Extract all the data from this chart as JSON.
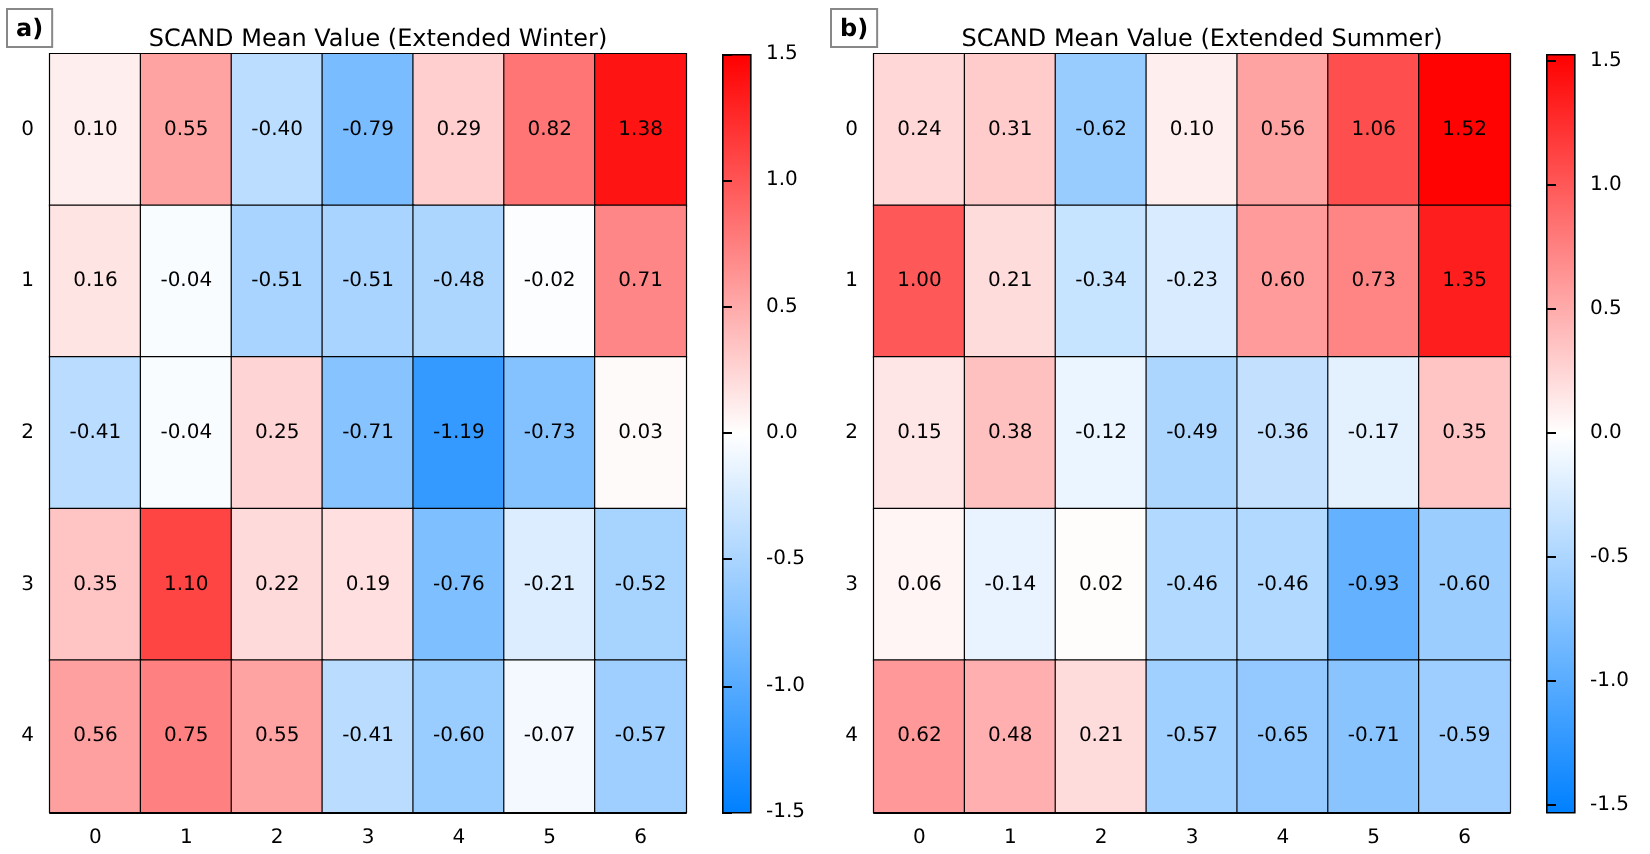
{
  "chart_data": [
    {
      "type": "heatmap",
      "title": "SCAND Mean Value (Extended Winter)",
      "annotations": [
        "a)"
      ],
      "categories": [
        "0",
        "1",
        "2",
        "3",
        "4",
        "5",
        "6"
      ],
      "y_categories": [
        "0",
        "1",
        "2",
        "3",
        "4"
      ],
      "cells": [
        [
          0.1,
          0.55,
          -0.4,
          -0.79,
          0.29,
          0.82,
          1.38
        ],
        [
          0.16,
          -0.04,
          -0.51,
          -0.51,
          -0.48,
          -0.02,
          0.71
        ],
        [
          -0.41,
          -0.04,
          0.25,
          -0.71,
          -1.19,
          -0.73,
          0.03
        ],
        [
          0.35,
          1.1,
          0.22,
          0.19,
          -0.76,
          -0.21,
          -0.52
        ],
        [
          0.56,
          0.75,
          0.55,
          -0.41,
          -0.6,
          -0.07,
          -0.57
        ]
      ],
      "cell_labels": [
        [
          "0.10",
          "0.55",
          "-0.40",
          "-0.79",
          "0.29",
          "0.82",
          "1.38"
        ],
        [
          "0.16",
          "-0.04",
          "-0.51",
          "-0.51",
          "-0.48",
          "-0.02",
          "0.71"
        ],
        [
          "-0.41",
          "-0.04",
          "0.25",
          "-0.71",
          "-1.19",
          "-0.73",
          "0.03"
        ],
        [
          "0.35",
          "1.10",
          "0.22",
          "0.19",
          "-0.76",
          "-0.21",
          "-0.52"
        ],
        [
          "0.56",
          "0.75",
          "0.55",
          "-0.41",
          "-0.60",
          "-0.07",
          "-0.57"
        ]
      ],
      "data_labels": true,
      "colors": [
        "#0080ff",
        "#ffffff",
        "#ff0000"
      ],
      "clim": [
        -1.5,
        1.5
      ],
      "cticks": [
        -1.5,
        {
          "value": -1,
          "label": "-1.0"
        },
        -0.5,
        {
          "value": 0,
          "label": "0.0"
        },
        0.5,
        {
          "value": 1,
          "label": "1.0"
        },
        1.5
      ]
    },
    {
      "type": "heatmap",
      "title": "SCAND Mean Value (Extended Summer)",
      "annotations": [
        "b)"
      ],
      "categories": [
        "0",
        "1",
        "2",
        "3",
        "4",
        "5",
        "6"
      ],
      "y_categories": [
        "0",
        "1",
        "2",
        "3",
        "4"
      ],
      "cells": [
        [
          0.24,
          0.31,
          -0.62,
          0.1,
          0.56,
          1.06,
          1.52
        ],
        [
          1.0,
          0.21,
          -0.34,
          -0.23,
          0.6,
          0.73,
          1.35
        ],
        [
          0.15,
          0.38,
          -0.12,
          -0.49,
          -0.36,
          -0.17,
          0.35
        ],
        [
          0.06,
          -0.14,
          0.02,
          -0.46,
          -0.46,
          -0.93,
          -0.6
        ],
        [
          0.62,
          0.48,
          0.21,
          -0.57,
          -0.65,
          -0.71,
          -0.59
        ]
      ],
      "cell_labels": [
        [
          "0.24",
          "0.31",
          "-0.62",
          "0.10",
          "0.56",
          "1.06",
          "1.52"
        ],
        [
          "1.00",
          "0.21",
          "-0.34",
          "-0.23",
          "0.60",
          "0.73",
          "1.35"
        ],
        [
          "0.15",
          "0.38",
          "-0.12",
          "-0.49",
          "-0.36",
          "-0.17",
          "0.35"
        ],
        [
          "0.06",
          "-0.14",
          "0.02",
          "-0.46",
          "-0.46",
          "-0.93",
          "-0.60"
        ],
        [
          "0.62",
          "0.48",
          "0.21",
          "-0.57",
          "-0.65",
          "-0.71",
          "-0.59"
        ]
      ],
      "data_labels": true,
      "colors": [
        "#0080ff",
        "#ffffff",
        "#ff0000"
      ],
      "clim": [
        -1.53,
        1.53
      ],
      "cticks": [
        -1.5,
        {
          "value": -1,
          "label": "-1.0"
        },
        -0.5,
        {
          "value": 0,
          "label": "0.0"
        },
        0.5,
        {
          "value": 1,
          "label": "1.0"
        },
        1.5
      ]
    }
  ]
}
